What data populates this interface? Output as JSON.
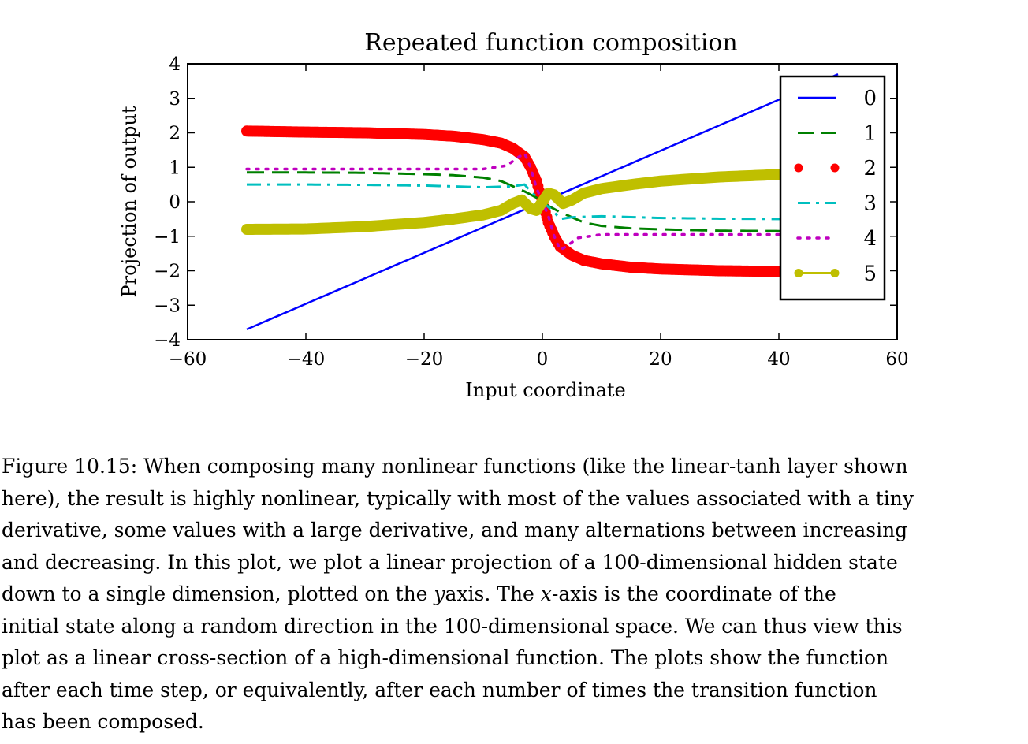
{
  "chart_data": {
    "type": "line",
    "title": "Repeated function composition",
    "xlabel": "Input coordinate",
    "ylabel": "Projection of output",
    "xlim": [
      -60,
      60
    ],
    "ylim": [
      -4,
      4
    ],
    "xticks": [
      -60,
      -40,
      -20,
      0,
      20,
      40,
      60
    ],
    "xtick_labels": [
      "−60",
      "−40",
      "−20",
      "0",
      "20",
      "40",
      "60"
    ],
    "yticks": [
      4,
      3,
      2,
      1,
      0,
      -1,
      -2,
      -3,
      -4
    ],
    "ytick_labels": [
      "4",
      "3",
      "2",
      "1",
      "0",
      "−1",
      "−2",
      "−3",
      "−4"
    ],
    "grid": false,
    "legend_position": "top-right",
    "series": [
      {
        "name": "0",
        "color": "#0000ff",
        "style": "solid",
        "x": [
          -50,
          50
        ],
        "y": [
          -3.7,
          3.7
        ]
      },
      {
        "name": "1",
        "color": "#008000",
        "style": "dashed",
        "x": [
          -50,
          -40,
          -30,
          -20,
          -15,
          -10,
          -7,
          -5,
          -3,
          -1,
          0,
          1,
          3,
          5,
          7,
          10,
          15,
          20,
          30,
          40,
          50
        ],
        "y": [
          0.85,
          0.85,
          0.84,
          0.8,
          0.77,
          0.7,
          0.6,
          0.45,
          0.3,
          0.12,
          0,
          -0.12,
          -0.3,
          -0.45,
          -0.6,
          -0.7,
          -0.77,
          -0.8,
          -0.84,
          -0.85,
          -0.85
        ]
      },
      {
        "name": "2",
        "color": "#ff0000",
        "style": "dots",
        "x": [
          -50,
          -40,
          -30,
          -20,
          -15,
          -10,
          -7,
          -5,
          -3,
          -2,
          -1,
          0,
          1,
          2,
          3,
          5,
          7,
          10,
          15,
          20,
          30,
          40,
          50
        ],
        "y": [
          2.05,
          2.02,
          2.0,
          1.95,
          1.9,
          1.8,
          1.7,
          1.55,
          1.3,
          1.0,
          0.6,
          0,
          -0.6,
          -1.0,
          -1.3,
          -1.55,
          -1.7,
          -1.8,
          -1.9,
          -1.95,
          -2.0,
          -2.02,
          -2.05
        ]
      },
      {
        "name": "3",
        "color": "#00bfbf",
        "style": "dashdot",
        "x": [
          -50,
          -40,
          -30,
          -20,
          -10,
          -5,
          -3,
          -2,
          0,
          2,
          3,
          5,
          10,
          20,
          30,
          40,
          50
        ],
        "y": [
          0.5,
          0.5,
          0.49,
          0.47,
          0.42,
          0.45,
          0.5,
          0.3,
          0,
          -0.3,
          -0.5,
          -0.45,
          -0.42,
          -0.47,
          -0.49,
          -0.5,
          -0.5
        ]
      },
      {
        "name": "4",
        "color": "#bf00bf",
        "style": "dotted",
        "x": [
          -50,
          -40,
          -30,
          -20,
          -10,
          -6,
          -4,
          -3,
          -2,
          -1,
          0,
          1,
          2,
          3,
          4,
          6,
          10,
          20,
          30,
          40,
          50
        ],
        "y": [
          0.95,
          0.95,
          0.95,
          0.95,
          0.95,
          1.05,
          1.3,
          1.4,
          1.0,
          0.4,
          0,
          -0.4,
          -1.0,
          -1.4,
          -1.3,
          -1.05,
          -0.95,
          -0.95,
          -0.95,
          -0.95,
          -0.95
        ]
      },
      {
        "name": "5",
        "color": "#bfbf00",
        "style": "thick",
        "x": [
          -50,
          -40,
          -30,
          -20,
          -15,
          -10,
          -7,
          -5,
          -3.5,
          -2,
          -1,
          0,
          1,
          2,
          3.5,
          5,
          7,
          10,
          15,
          20,
          30,
          40,
          50
        ],
        "y": [
          -0.8,
          -0.79,
          -0.72,
          -0.6,
          -0.5,
          -0.38,
          -0.25,
          -0.05,
          0.05,
          -0.2,
          -0.25,
          0,
          0.25,
          0.2,
          -0.05,
          0.05,
          0.25,
          0.38,
          0.5,
          0.6,
          0.72,
          0.79,
          0.8
        ]
      }
    ]
  },
  "caption": {
    "lines": [
      [
        "Figure 10.15: When composing many nonlinear functions (like the linear-",
        "tanh",
        " layer shown"
      ],
      [
        "here), the result is highly nonlinear, typically with most of the values associated with a tiny"
      ],
      [
        "derivative, some values with a large derivative, and many alternations between increasing"
      ],
      [
        "and decreasing. In this plot, we plot a linear projection of a 100-dimensional hidden state"
      ],
      [
        "down to a single dimension, plotted on the ",
        "y",
        "axis. The ",
        "x",
        "-axis is the coordinate of the"
      ],
      [
        "initial state along a random direction in the 100-dimensional space. We can thus view this"
      ],
      [
        "plot as a linear cross-section of a high-dimensional function. The plots show the function"
      ],
      [
        "after each time step, or equivalently, after each number of times the transition function"
      ],
      [
        "has been composed."
      ]
    ]
  }
}
